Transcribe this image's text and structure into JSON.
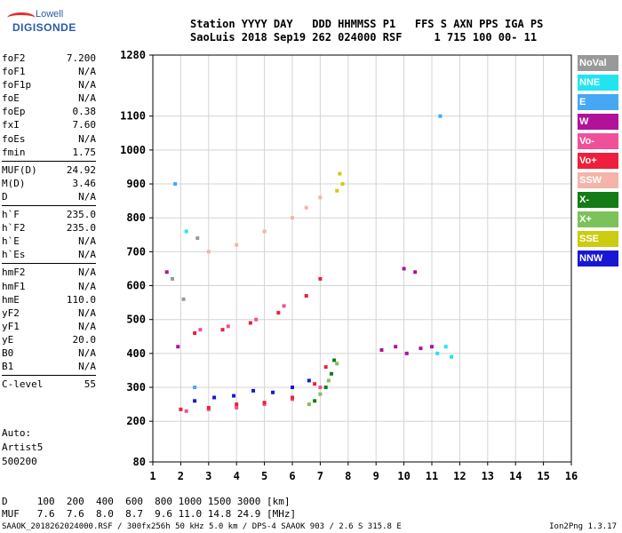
{
  "logo": {
    "top": "Lowell",
    "bottom": "DIGISONDE"
  },
  "header": {
    "line1": "Station YYYY DAY   DDD HHMMSS P1   FFS S AXN PPS IGA PS",
    "line2": "SaoLuis 2018 Sep19 262 024000 RSF     1 715 100 00- 11"
  },
  "params": {
    "group1": [
      {
        "label": "foF2",
        "value": "7.200"
      },
      {
        "label": "foF1",
        "value": "N/A"
      },
      {
        "label": "foF1p",
        "value": "N/A"
      },
      {
        "label": "foE",
        "value": "N/A"
      },
      {
        "label": "foEp",
        "value": "0.38"
      },
      {
        "label": "fxI",
        "value": "7.60"
      },
      {
        "label": "foEs",
        "value": "N/A"
      },
      {
        "label": "fmin",
        "value": "1.75"
      }
    ],
    "group2": [
      {
        "label": "MUF(D)",
        "value": "24.92"
      },
      {
        "label": "M(D)",
        "value": "3.46"
      },
      {
        "label": "D",
        "value": "N/A"
      }
    ],
    "group3": [
      {
        "label": "h`F",
        "value": "235.0"
      },
      {
        "label": "h`F2",
        "value": "235.0"
      },
      {
        "label": "h`E",
        "value": "N/A"
      },
      {
        "label": "h`Es",
        "value": "N/A"
      }
    ],
    "group4": [
      {
        "label": "hmF2",
        "value": "N/A"
      },
      {
        "label": "hmF1",
        "value": "N/A"
      },
      {
        "label": "hmE",
        "value": "110.0"
      },
      {
        "label": "yF2",
        "value": "N/A"
      },
      {
        "label": "yF1",
        "value": "N/A"
      },
      {
        "label": "yE",
        "value": "20.0"
      },
      {
        "label": "B0",
        "value": "N/A"
      },
      {
        "label": "B1",
        "value": "N/A"
      }
    ],
    "group5": [
      {
        "label": "C-level",
        "value": "55"
      }
    ]
  },
  "auto": {
    "line1": "Auto:",
    "line2": "Artist5",
    "line3": "500200"
  },
  "legend": [
    {
      "label": "NoVal",
      "color": "#999999",
      "text": "#ffffff"
    },
    {
      "label": "NNE",
      "color": "#22e4f0",
      "text": "#ffffff"
    },
    {
      "label": "E",
      "color": "#46a8f4",
      "text": "#ffffff"
    },
    {
      "label": "W",
      "color": "#b0129a",
      "text": "#ffffff"
    },
    {
      "label": "Vo-",
      "color": "#f0509a",
      "text": "#ffffff"
    },
    {
      "label": "Vo+",
      "color": "#ee1f3c",
      "text": "#ffffff"
    },
    {
      "label": "SSW",
      "color": "#f4b4aa",
      "text": "#ffffff"
    },
    {
      "label": "X-",
      "color": "#147c16",
      "text": "#ffffff"
    },
    {
      "label": "X+",
      "color": "#7cc25a",
      "text": "#ffffff"
    },
    {
      "label": "SSE",
      "color": "#cccc10",
      "text": "#ffffff"
    },
    {
      "label": "NNW",
      "color": "#1818d4",
      "text": "#ffffff"
    }
  ],
  "muf_table": {
    "line1": "D     100  200  400  600  800 1000 1500 3000 [km]",
    "line2": "MUF   7.6  7.6  8.0  8.7  9.6 11.0 14.8 24.9 [MHz]"
  },
  "footer": "SAAOK_2018262024000.RSF / 300fx256h 50 kHz 5.0 km / DPS-4 SAAOK 903 / 2.6 S 315.8 E",
  "version": "Ion2Png 1.3.17",
  "chart_data": {
    "type": "scatter",
    "x_ticks": [
      1,
      2,
      3,
      4,
      5,
      6,
      7,
      8,
      9,
      10,
      11,
      12,
      13,
      14,
      15,
      16
    ],
    "y_ticks": [
      80,
      200,
      300,
      400,
      500,
      600,
      700,
      800,
      900,
      1000,
      1100,
      1280
    ],
    "xlim": [
      1,
      16
    ],
    "ylim": [
      80,
      1280
    ],
    "grid": true,
    "xlabel": "",
    "ylabel": "",
    "series": [
      {
        "name": "NoVal",
        "x": [
          1.7,
          2.1,
          2.6
        ],
        "y": [
          620,
          560,
          740
        ]
      },
      {
        "name": "NNE",
        "x": [
          11.2,
          11.5,
          11.7,
          2.2
        ],
        "y": [
          400,
          420,
          390,
          760
        ]
      },
      {
        "name": "E",
        "x": [
          1.8,
          2.5,
          11.3
        ],
        "y": [
          900,
          300,
          1100
        ]
      },
      {
        "name": "W",
        "x": [
          1.5,
          1.9,
          9.2,
          9.7,
          10.1,
          10.6,
          11.0,
          10.0,
          10.4
        ],
        "y": [
          640,
          420,
          410,
          420,
          400,
          415,
          420,
          650,
          640
        ]
      },
      {
        "name": "Vo-",
        "x": [
          2.2,
          3.0,
          4.0,
          5.0,
          6.0,
          7.0,
          2.7,
          3.7,
          4.7,
          5.7
        ],
        "y": [
          230,
          235,
          240,
          250,
          265,
          300,
          470,
          480,
          500,
          540
        ]
      },
      {
        "name": "Vo+",
        "x": [
          2.0,
          3.0,
          4.0,
          5.0,
          6.0,
          6.8,
          7.2,
          2.5,
          3.5,
          4.5,
          5.5,
          6.5,
          7.0
        ],
        "y": [
          235,
          240,
          250,
          255,
          270,
          310,
          360,
          460,
          470,
          490,
          520,
          570,
          620
        ]
      },
      {
        "name": "SSW",
        "x": [
          3.0,
          4.0,
          5.0,
          6.0,
          6.5,
          7.0
        ],
        "y": [
          700,
          720,
          760,
          800,
          830,
          860
        ]
      },
      {
        "name": "X-",
        "x": [
          6.8,
          7.2,
          7.4,
          7.5
        ],
        "y": [
          260,
          300,
          340,
          380
        ]
      },
      {
        "name": "X+",
        "x": [
          6.6,
          7.0,
          7.3,
          7.6
        ],
        "y": [
          250,
          280,
          320,
          370
        ]
      },
      {
        "name": "SSE",
        "x": [
          7.6,
          7.8,
          7.7
        ],
        "y": [
          880,
          900,
          930
        ]
      },
      {
        "name": "NNW",
        "x": [
          2.5,
          3.2,
          3.9,
          4.6,
          5.3,
          6.0,
          6.6
        ],
        "y": [
          260,
          270,
          275,
          290,
          285,
          300,
          320
        ]
      }
    ]
  }
}
